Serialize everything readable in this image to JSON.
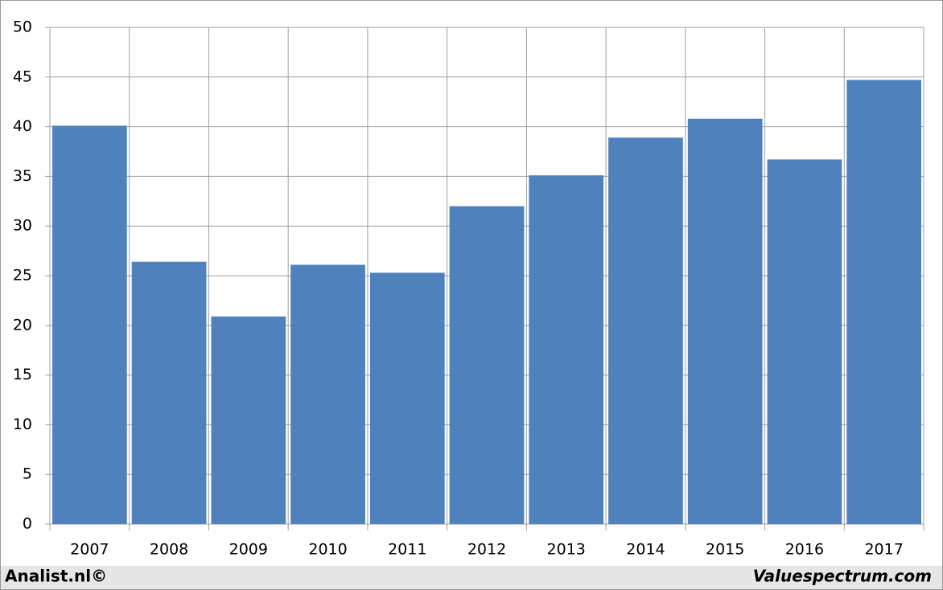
{
  "chart_data": {
    "type": "bar",
    "categories": [
      "2007",
      "2008",
      "2009",
      "2010",
      "2011",
      "2012",
      "2013",
      "2014",
      "2015",
      "2016",
      "2017"
    ],
    "values": [
      40.1,
      26.4,
      20.9,
      26.1,
      25.3,
      32.0,
      35.1,
      38.9,
      40.8,
      36.7,
      44.7
    ],
    "color": "#4f81bd",
    "ylim": [
      0,
      50
    ],
    "yticks": [
      0,
      5,
      10,
      15,
      20,
      25,
      30,
      35,
      40,
      45,
      50
    ],
    "grid": true,
    "source": "Analist.nl©",
    "watermark": "Valuespectrum.com"
  }
}
